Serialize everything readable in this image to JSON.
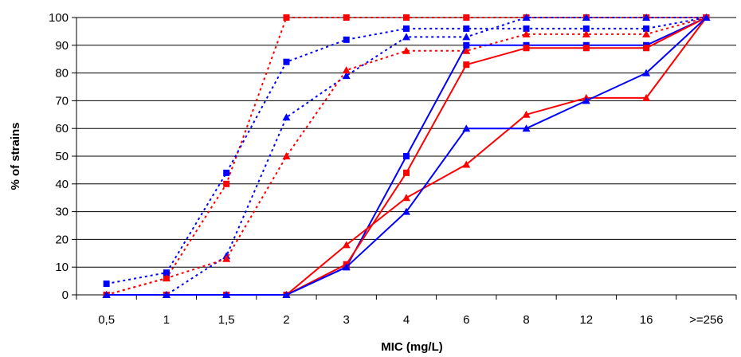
{
  "chart_data": {
    "type": "line",
    "title": "",
    "xlabel": "MIC (mg/L)",
    "ylabel": "% of strains",
    "categories": [
      "0,5",
      "1",
      "1,5",
      "2",
      "3",
      "4",
      "6",
      "8",
      "12",
      "16",
      ">=256"
    ],
    "ylim": [
      0,
      100
    ],
    "yticks": [
      0,
      10,
      20,
      30,
      40,
      50,
      60,
      70,
      80,
      90,
      100
    ],
    "grid": true,
    "legend": "none",
    "colors": {
      "red": "#ff0000",
      "blue": "#0000ff"
    },
    "series": [
      {
        "color": "#ff0000",
        "marker": "square",
        "style": "dotted",
        "values": [
          0,
          6,
          40,
          100,
          100,
          100,
          100,
          100,
          100,
          100,
          100
        ]
      },
      {
        "color": "#0000ff",
        "marker": "square",
        "style": "dotted",
        "values": [
          4,
          8,
          44,
          84,
          92,
          96,
          96,
          96,
          96,
          96,
          100
        ]
      },
      {
        "color": "#0000ff",
        "marker": "triangle",
        "style": "dotted",
        "values": [
          0,
          0,
          14,
          64,
          79,
          93,
          93,
          100,
          100,
          100,
          100
        ]
      },
      {
        "color": "#ff0000",
        "marker": "triangle",
        "style": "dotted",
        "values": [
          0,
          6,
          13,
          50,
          81,
          88,
          88,
          94,
          94,
          94,
          100
        ]
      },
      {
        "color": "#0000ff",
        "marker": "square",
        "style": "solid",
        "values": [
          0,
          0,
          0,
          0,
          10,
          50,
          90,
          90,
          90,
          90,
          100
        ]
      },
      {
        "color": "#ff0000",
        "marker": "square",
        "style": "solid",
        "values": [
          0,
          0,
          0,
          0,
          11,
          44,
          83,
          89,
          89,
          89,
          100
        ]
      },
      {
        "color": "#ff0000",
        "marker": "triangle",
        "style": "solid",
        "values": [
          0,
          0,
          0,
          0,
          18,
          35,
          47,
          65,
          71,
          71,
          100
        ]
      },
      {
        "color": "#0000ff",
        "marker": "triangle",
        "style": "solid",
        "values": [
          0,
          0,
          0,
          0,
          10,
          30,
          60,
          60,
          70,
          80,
          100
        ]
      }
    ]
  }
}
